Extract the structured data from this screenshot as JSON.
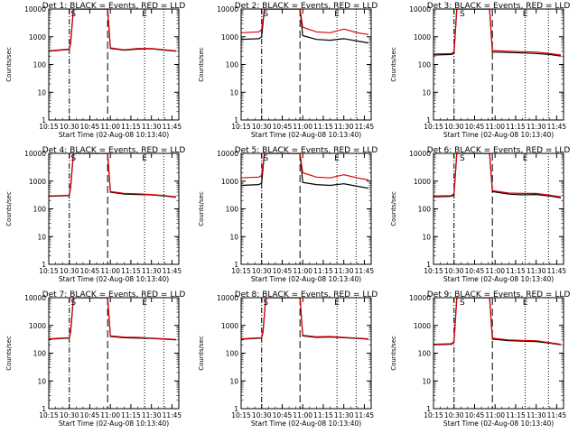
{
  "chart_data": {
    "type": "line",
    "scale": "log-y",
    "ylim": [
      1,
      10000
    ],
    "yticks": [
      "1",
      "10",
      "100",
      "1000",
      "10000"
    ],
    "xticks": [
      "10:15",
      "10:30",
      "10:45",
      "11:00",
      "11:15",
      "11:30",
      "11:45"
    ],
    "xlim_min": [
      15,
      110
    ],
    "colors": {
      "events": "#000000",
      "lld": "#e00000"
    },
    "panels": [
      {
        "title": "Det 1: BLACK = Events, RED = LLD",
        "xlabel": "Start Time (02-Aug-08 10:13:40)",
        "ylabel": "Counts/sec",
        "markers": [
          {
            "text": "S",
            "t": 33
          },
          {
            "text": "E",
            "t": 85
          }
        ],
        "vlines": [
          {
            "t": 30,
            "style": "dash-dot"
          },
          {
            "t": 58,
            "style": "dashed"
          },
          {
            "t": 85,
            "style": "dotted"
          },
          {
            "t": 99,
            "style": "dotted"
          }
        ],
        "series": [
          {
            "name": "Events",
            "t": [
              15,
              30,
              31,
              33,
              58,
              60,
              70,
              80,
              90,
              100,
              108
            ],
            "v": [
              300,
              350,
              600,
              10000,
              10000,
              380,
              330,
              360,
              370,
              330,
              300
            ]
          },
          {
            "name": "LLD",
            "t": [
              15,
              30,
              31,
              33,
              58,
              60,
              70,
              80,
              90,
              100,
              108
            ],
            "v": [
              310,
              360,
              700,
              10000,
              10000,
              400,
              340,
              380,
              380,
              340,
              310
            ]
          }
        ]
      },
      {
        "title": "Det 2: BLACK = Events, RED = LLD",
        "xlabel": "Start Time (02-Aug-08 10:13:40)",
        "ylabel": "Counts/sec",
        "markers": [
          {
            "text": "S",
            "t": 33
          },
          {
            "text": "E",
            "t": 85
          }
        ],
        "vlines": [
          {
            "t": 30,
            "style": "dash-dot"
          },
          {
            "t": 58,
            "style": "dashed"
          },
          {
            "t": 85,
            "style": "dotted"
          },
          {
            "t": 99,
            "style": "dotted"
          }
        ],
        "series": [
          {
            "name": "Events",
            "t": [
              15,
              28,
              30,
              32,
              58,
              60,
              70,
              80,
              90,
              100,
              108
            ],
            "v": [
              800,
              850,
              1000,
              10000,
              10000,
              1100,
              800,
              750,
              850,
              700,
              600
            ]
          },
          {
            "name": "LLD",
            "t": [
              15,
              28,
              30,
              32,
              58,
              60,
              70,
              80,
              90,
              100,
              108
            ],
            "v": [
              1400,
              1500,
              1800,
              10000,
              10000,
              2200,
              1500,
              1400,
              1900,
              1400,
              1200
            ]
          }
        ]
      },
      {
        "title": "Det 3: BLACK = Events, RED = LLD",
        "xlabel": "Start Time (02-Aug-08 10:13:40)",
        "ylabel": "Counts/sec",
        "markers": [
          {
            "text": "S",
            "t": 36
          },
          {
            "text": "E",
            "t": 82
          }
        ],
        "vlines": [
          {
            "t": 30,
            "style": "dash-dot"
          },
          {
            "t": 58,
            "style": "dashed"
          },
          {
            "t": 82,
            "style": "dotted"
          },
          {
            "t": 99,
            "style": "dotted"
          }
        ],
        "series": [
          {
            "name": "Events",
            "t": [
              15,
              28,
              30,
              32,
              56,
              58,
              70,
              80,
              90,
              100,
              108
            ],
            "v": [
              220,
              230,
              250,
              10000,
              10000,
              280,
              270,
              260,
              250,
              230,
              200
            ]
          },
          {
            "name": "LLD",
            "t": [
              15,
              28,
              30,
              32,
              56,
              58,
              70,
              80,
              90,
              100,
              108
            ],
            "v": [
              240,
              250,
              280,
              10000,
              10000,
              320,
              300,
              290,
              280,
              250,
              220
            ]
          }
        ]
      },
      {
        "title": "Det 4: BLACK = Events, RED = LLD",
        "xlabel": "Start Time (02-Aug-08 10:13:40)",
        "ylabel": "Counts/sec",
        "markers": [
          {
            "text": "S",
            "t": 33
          },
          {
            "text": "E",
            "t": 85
          }
        ],
        "vlines": [
          {
            "t": 30,
            "style": "dash-dot"
          },
          {
            "t": 58,
            "style": "dashed"
          },
          {
            "t": 85,
            "style": "dotted"
          },
          {
            "t": 99,
            "style": "dotted"
          }
        ],
        "series": [
          {
            "name": "Events",
            "t": [
              15,
              30,
              31,
              33,
              58,
              60,
              70,
              80,
              90,
              100,
              108
            ],
            "v": [
              280,
              300,
              600,
              10000,
              10000,
              400,
              340,
              330,
              320,
              290,
              260
            ]
          },
          {
            "name": "LLD",
            "t": [
              15,
              30,
              31,
              33,
              58,
              60,
              70,
              80,
              90,
              100,
              108
            ],
            "v": [
              290,
              310,
              700,
              10000,
              10000,
              420,
              360,
              350,
              330,
              300,
              270
            ]
          }
        ]
      },
      {
        "title": "Det 5: BLACK = Events, RED = LLD",
        "xlabel": "Start Time (02-Aug-08 10:13:40)",
        "ylabel": "Counts/sec",
        "markers": [
          {
            "text": "S",
            "t": 33
          },
          {
            "text": "E",
            "t": 85
          }
        ],
        "vlines": [
          {
            "t": 30,
            "style": "dash-dot"
          },
          {
            "t": 58,
            "style": "dashed"
          },
          {
            "t": 85,
            "style": "dotted"
          },
          {
            "t": 99,
            "style": "dotted"
          }
        ],
        "series": [
          {
            "name": "Events",
            "t": [
              15,
              28,
              30,
              32,
              58,
              60,
              70,
              80,
              90,
              100,
              108
            ],
            "v": [
              700,
              750,
              850,
              10000,
              10000,
              900,
              750,
              700,
              800,
              650,
              550
            ]
          },
          {
            "name": "LLD",
            "t": [
              15,
              28,
              30,
              32,
              58,
              60,
              70,
              80,
              90,
              100,
              108
            ],
            "v": [
              1300,
              1400,
              1600,
              10000,
              10000,
              2000,
              1400,
              1300,
              1700,
              1300,
              1100
            ]
          }
        ]
      },
      {
        "title": "Det 6: BLACK = Events, RED = LLD",
        "xlabel": "Start Time (02-Aug-08 10:13:40)",
        "ylabel": "Counts/sec",
        "markers": [
          {
            "text": "S",
            "t": 36
          },
          {
            "text": "E",
            "t": 82
          }
        ],
        "vlines": [
          {
            "t": 30,
            "style": "dash-dot"
          },
          {
            "t": 58,
            "style": "dashed"
          },
          {
            "t": 82,
            "style": "dotted"
          },
          {
            "t": 99,
            "style": "dotted"
          }
        ],
        "series": [
          {
            "name": "Events",
            "t": [
              15,
              28,
              30,
              32,
              56,
              58,
              70,
              80,
              90,
              100,
              108
            ],
            "v": [
              270,
              280,
              320,
              10000,
              10000,
              420,
              340,
              320,
              330,
              290,
              250
            ]
          },
          {
            "name": "LLD",
            "t": [
              15,
              28,
              30,
              32,
              56,
              58,
              70,
              80,
              90,
              100,
              108
            ],
            "v": [
              290,
              300,
              350,
              10000,
              10000,
              450,
              370,
              360,
              360,
              310,
              270
            ]
          }
        ]
      },
      {
        "title": "Det 7: BLACK = Events, RED = LLD",
        "xlabel": "Start Time (02-Aug-08 10:13:40)",
        "ylabel": "Counts/sec",
        "markers": [
          {
            "text": "S",
            "t": 33
          },
          {
            "text": "E",
            "t": 85
          }
        ],
        "vlines": [
          {
            "t": 30,
            "style": "dash-dot"
          },
          {
            "t": 58,
            "style": "dashed"
          },
          {
            "t": 85,
            "style": "dotted"
          },
          {
            "t": 99,
            "style": "dotted"
          }
        ],
        "series": [
          {
            "name": "Events",
            "t": [
              15,
              30,
              31,
              33,
              58,
              60,
              70,
              80,
              90,
              100,
              108
            ],
            "v": [
              320,
              350,
              600,
              10000,
              10000,
              400,
              360,
              350,
              340,
              320,
              300
            ]
          },
          {
            "name": "LLD",
            "t": [
              15,
              30,
              31,
              33,
              58,
              60,
              70,
              80,
              90,
              100,
              108
            ],
            "v": [
              330,
              360,
              700,
              10000,
              10000,
              420,
              380,
              370,
              350,
              330,
              310
            ]
          }
        ]
      },
      {
        "title": "Det 8: BLACK = Events, RED = LLD",
        "xlabel": "Start Time (02-Aug-08 10:13:40)",
        "ylabel": "Counts/sec",
        "markers": [
          {
            "text": "S",
            "t": 33
          },
          {
            "text": "E",
            "t": 85
          }
        ],
        "vlines": [
          {
            "t": 30,
            "style": "dash-dot"
          },
          {
            "t": 58,
            "style": "dashed"
          },
          {
            "t": 85,
            "style": "dotted"
          },
          {
            "t": 99,
            "style": "dotted"
          }
        ],
        "series": [
          {
            "name": "Events",
            "t": [
              15,
              30,
              31,
              33,
              58,
              60,
              70,
              80,
              90,
              100,
              108
            ],
            "v": [
              320,
              350,
              600,
              10000,
              10000,
              420,
              370,
              380,
              360,
              340,
              320
            ]
          },
          {
            "name": "LLD",
            "t": [
              15,
              30,
              31,
              33,
              58,
              60,
              70,
              80,
              90,
              100,
              108
            ],
            "v": [
              330,
              360,
              700,
              10000,
              10000,
              440,
              390,
              400,
              370,
              350,
              330
            ]
          }
        ]
      },
      {
        "title": "Det 9: BLACK = Events, RED = LLD",
        "xlabel": "Start Time (02-Aug-08 10:13:40)",
        "ylabel": "Counts/sec",
        "markers": [
          {
            "text": "S",
            "t": 36
          },
          {
            "text": "E",
            "t": 82
          }
        ],
        "vlines": [
          {
            "t": 30,
            "style": "dash-dot"
          },
          {
            "t": 58,
            "style": "dashed"
          },
          {
            "t": 82,
            "style": "dotted"
          },
          {
            "t": 99,
            "style": "dotted"
          }
        ],
        "series": [
          {
            "name": "Events",
            "t": [
              15,
              28,
              30,
              32,
              56,
              58,
              70,
              80,
              90,
              100,
              108
            ],
            "v": [
              200,
              210,
              240,
              10000,
              10000,
              320,
              280,
              270,
              260,
              230,
              200
            ]
          },
          {
            "name": "LLD",
            "t": [
              15,
              28,
              30,
              32,
              56,
              58,
              70,
              80,
              90,
              100,
              108
            ],
            "v": [
              210,
              220,
              260,
              10000,
              10000,
              350,
              300,
              290,
              280,
              240,
              210
            ]
          }
        ]
      }
    ]
  }
}
